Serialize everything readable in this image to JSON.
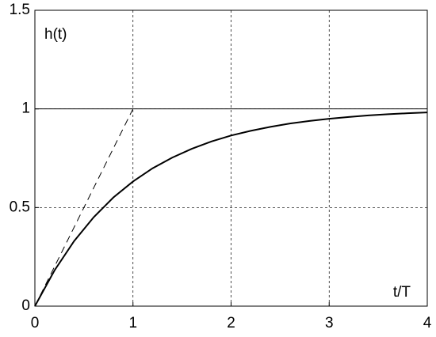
{
  "chart_data": {
    "type": "line",
    "xlabel": "t/T",
    "ylabel": "h(t)",
    "xlim": [
      0,
      4
    ],
    "ylim": [
      0,
      1.5
    ],
    "xticks": [
      0,
      1,
      2,
      3,
      4
    ],
    "yticks": [
      0,
      0.5,
      1,
      1.5
    ],
    "grid": true,
    "series": [
      {
        "color": "#000000",
        "dash": false,
        "width": 2,
        "x": [
          0,
          0.2,
          0.4,
          0.6,
          0.8,
          1,
          1.2,
          1.4,
          1.6,
          1.8,
          2,
          2.2,
          2.4,
          2.6,
          2.8,
          3,
          3.2,
          3.4,
          3.6,
          3.8,
          4
        ],
        "values": [
          0,
          0.181,
          0.33,
          0.451,
          0.551,
          0.632,
          0.699,
          0.753,
          0.798,
          0.835,
          0.865,
          0.889,
          0.909,
          0.926,
          0.939,
          0.95,
          0.959,
          0.967,
          0.973,
          0.978,
          0.982
        ]
      },
      {
        "color": "#000000",
        "dash": true,
        "width": 1,
        "x": [
          0,
          1
        ],
        "values": [
          0,
          1
        ]
      },
      {
        "color": "#000000",
        "dash": false,
        "width": 1,
        "x": [
          0,
          4
        ],
        "values": [
          1,
          1
        ]
      }
    ]
  }
}
